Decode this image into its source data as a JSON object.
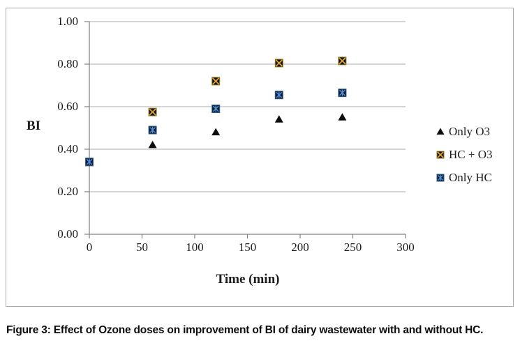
{
  "figure": {
    "caption": "Figure 3: Effect of Ozone doses on improvement of BI of dairy wastewater with and without HC."
  },
  "chart_data": {
    "type": "scatter",
    "title": "",
    "xlabel": "Time (min)",
    "ylabel": "BI",
    "xlim": [
      0,
      300
    ],
    "ylim": [
      0.0,
      1.0
    ],
    "grid": "horizontal",
    "legend_position": "right",
    "x_ticks": [
      0,
      50,
      100,
      150,
      200,
      250,
      300
    ],
    "x_tick_labels": [
      "0",
      "50",
      "100",
      "150",
      "200",
      "250",
      "300"
    ],
    "y_ticks": [
      0.0,
      0.2,
      0.4,
      0.6,
      0.8,
      1.0
    ],
    "y_tick_labels": [
      "0.00",
      "0.20",
      "0.40",
      "0.60",
      "0.80",
      "1.00"
    ],
    "series": [
      {
        "name": "Only O3",
        "marker": "triangle",
        "glyph_color": "#0d0d0d",
        "fill_color": "#0d0d0d",
        "border_color": "#0d0d0d",
        "points": [
          [
            0,
            0.34
          ],
          [
            60,
            0.42
          ],
          [
            120,
            0.48
          ],
          [
            180,
            0.54
          ],
          [
            240,
            0.55
          ]
        ]
      },
      {
        "name": "HC + O3",
        "marker": "square-x",
        "glyph_color": "#dfa32b",
        "fill_color": "#10131f",
        "border_color": "#9a7d1c",
        "points": [
          [
            0,
            0.34
          ],
          [
            60,
            0.575
          ],
          [
            120,
            0.72
          ],
          [
            180,
            0.805
          ],
          [
            240,
            0.815
          ]
        ]
      },
      {
        "name": "Only HC",
        "marker": "square-asterisk",
        "glyph_color": "#4e92d6",
        "fill_color": "#0e1d33",
        "border_color": "#2f5e93",
        "points": [
          [
            0,
            0.34
          ],
          [
            60,
            0.49
          ],
          [
            120,
            0.59
          ],
          [
            180,
            0.655
          ],
          [
            240,
            0.665
          ]
        ]
      }
    ],
    "colors": {
      "gridline": "#ababab",
      "axis": "#808080",
      "text": "#1c1c1c"
    }
  }
}
